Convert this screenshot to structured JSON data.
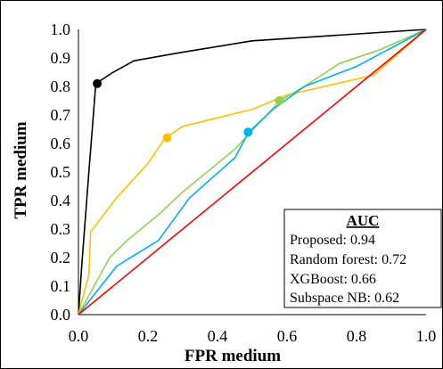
{
  "chart_data": {
    "type": "line",
    "xlabel": "FPR medium",
    "ylabel": "TPR medium",
    "xlim": [
      0,
      1
    ],
    "ylim": [
      0,
      1
    ],
    "x_ticks": [
      "0.0",
      "0.2",
      "0.4",
      "0.6",
      "0.8",
      "1.0"
    ],
    "y_ticks": [
      "0.0",
      "0.1",
      "0.2",
      "0.3",
      "0.4",
      "0.5",
      "0.6",
      "0.7",
      "0.8",
      "0.9",
      "1.0"
    ],
    "grid": false,
    "legend": {
      "title": "AUC",
      "placement": "bottom-right",
      "entries": [
        "Proposed: 0.94",
        "Random forest: 0.72",
        "XGBoost: 0.66",
        "Subspace NB: 0.62"
      ]
    },
    "series": [
      {
        "color": "#000000",
        "points": [
          [
            0,
            0
          ],
          [
            0.01,
            0.18
          ],
          [
            0.03,
            0.5
          ],
          [
            0.05,
            0.81
          ],
          [
            0.1,
            0.85
          ],
          [
            0.16,
            0.89
          ],
          [
            0.3,
            0.92
          ],
          [
            0.5,
            0.96
          ],
          [
            1,
            1
          ]
        ],
        "marker": [
          0.054,
          0.81
        ]
      },
      {
        "color": "#FFC000",
        "points": [
          [
            0,
            0
          ],
          [
            0.03,
            0.14
          ],
          [
            0.035,
            0.29
          ],
          [
            0.11,
            0.41
          ],
          [
            0.2,
            0.53
          ],
          [
            0.25,
            0.62
          ],
          [
            0.3,
            0.66
          ],
          [
            0.5,
            0.72
          ],
          [
            0.6,
            0.77
          ],
          [
            0.85,
            0.84
          ],
          [
            1,
            1
          ]
        ],
        "marker": [
          0.255,
          0.62
        ]
      },
      {
        "color": "#92D050",
        "points": [
          [
            0,
            0
          ],
          [
            0.09,
            0.2
          ],
          [
            0.14,
            0.26
          ],
          [
            0.23,
            0.35
          ],
          [
            0.3,
            0.43
          ],
          [
            0.45,
            0.58
          ],
          [
            0.58,
            0.75
          ],
          [
            0.65,
            0.8
          ],
          [
            0.75,
            0.88
          ],
          [
            0.87,
            0.93
          ],
          [
            1,
            1
          ]
        ],
        "marker": [
          0.578,
          0.75
        ]
      },
      {
        "color": "#00B0F0",
        "points": [
          [
            0,
            0
          ],
          [
            0.11,
            0.17
          ],
          [
            0.23,
            0.26
          ],
          [
            0.32,
            0.41
          ],
          [
            0.45,
            0.55
          ],
          [
            0.49,
            0.64
          ],
          [
            0.56,
            0.72
          ],
          [
            0.65,
            0.8
          ],
          [
            0.8,
            0.87
          ],
          [
            1,
            1
          ]
        ],
        "marker": [
          0.488,
          0.64
        ]
      },
      {
        "color": "#FF0000",
        "points": [
          [
            0,
            0
          ],
          [
            1,
            1
          ]
        ]
      }
    ]
  }
}
